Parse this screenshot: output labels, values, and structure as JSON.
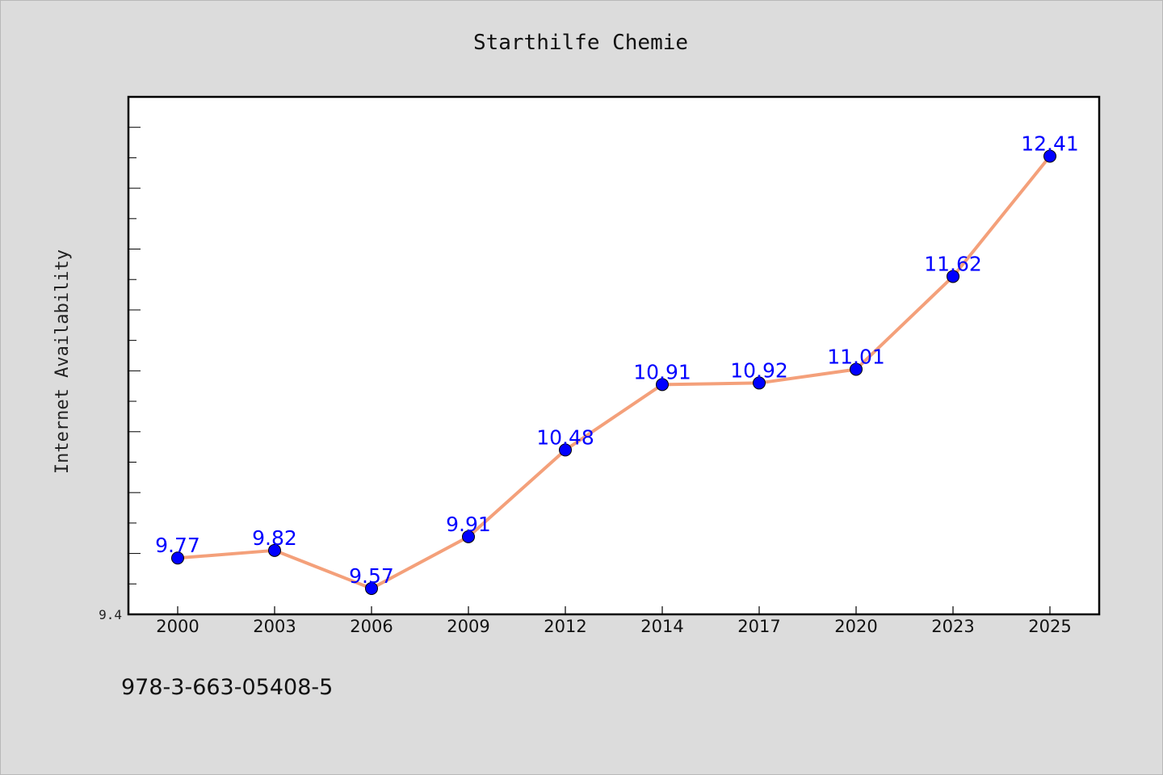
{
  "chart_data": {
    "type": "line",
    "title": "Starthilfe Chemie",
    "xlabel": "",
    "ylabel": "Internet Availability",
    "categories": [
      "2000",
      "2003",
      "2006",
      "2009",
      "2012",
      "2014",
      "2017",
      "2020",
      "2023",
      "2025"
    ],
    "series": [
      {
        "values": [
          9.77,
          9.82,
          9.57,
          9.91,
          10.48,
          10.91,
          10.92,
          11.01,
          11.62,
          12.41
        ],
        "data_labels": [
          "9.77",
          "9.82",
          "9.57",
          "9.91",
          "10.48",
          "10.91",
          "10.92",
          "11.01",
          "11.62",
          "12.41"
        ],
        "line_color": "#f4a07a",
        "marker_color": "#0000ff"
      }
    ],
    "ytick_labels": [
      "9.4"
    ],
    "ylim": [
      9.4,
      12.8
    ],
    "grid": false,
    "legend": "none",
    "label_color": "#0000ff"
  },
  "footer": {
    "isbn": "978-3-663-05408-5"
  }
}
